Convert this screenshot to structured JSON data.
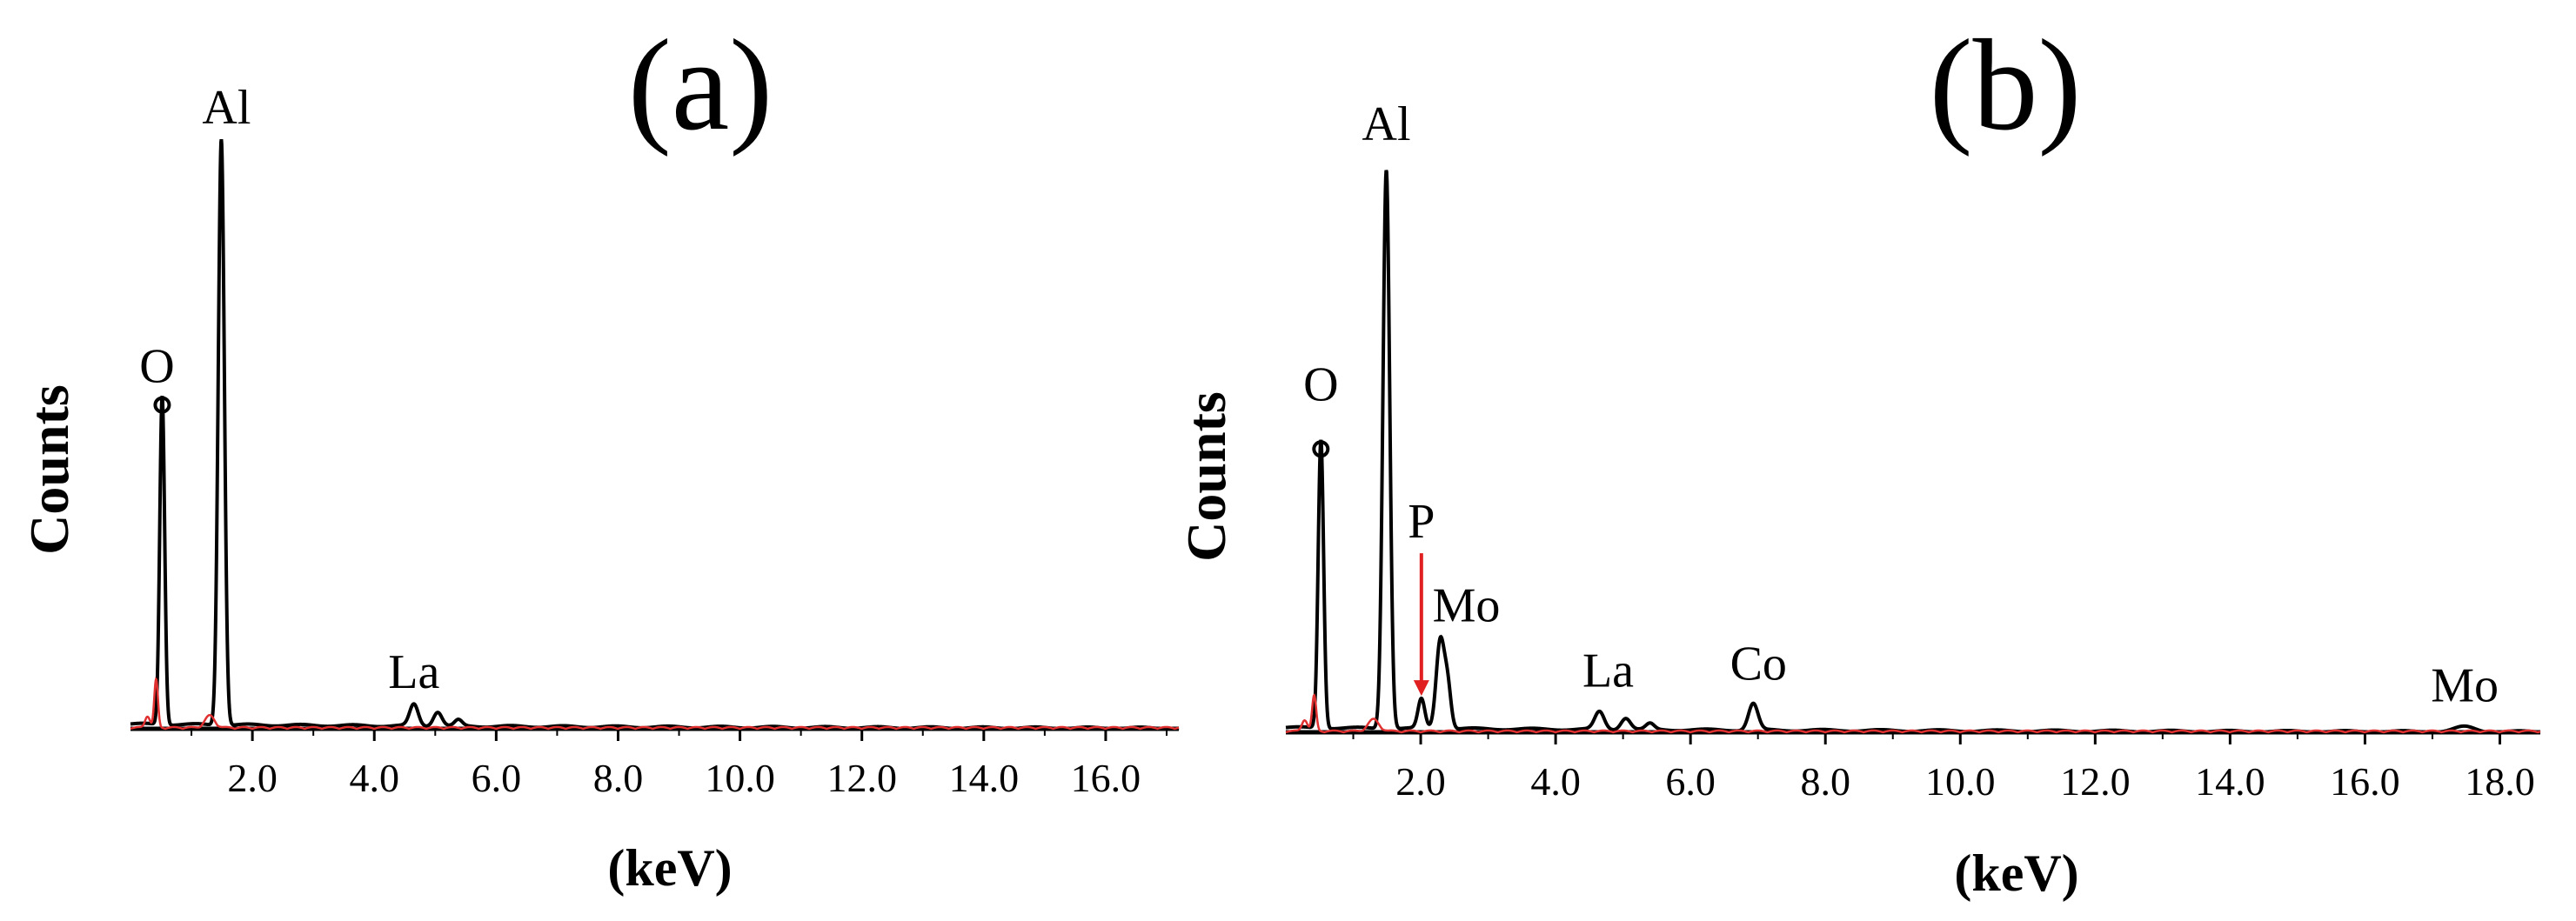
{
  "chart_data": [
    {
      "type": "line",
      "title": "(a)",
      "xlabel": "(keV)",
      "ylabel": "Counts",
      "xlim": [
        0.0,
        17.2
      ],
      "ylim": [
        0,
        100
      ],
      "xticks": [
        "2.0",
        "4.0",
        "6.0",
        "8.0",
        "10.0",
        "12.0",
        "14.0",
        "16.0"
      ],
      "grid": false,
      "series": [
        {
          "color": "#000000",
          "peaks": [
            {
              "x": 0.52,
              "y": 55,
              "w": 0.04
            },
            {
              "x": 1.49,
              "y": 98,
              "w": 0.05
            },
            {
              "x": 4.65,
              "y": 3.6,
              "w": 0.07
            },
            {
              "x": 5.04,
              "y": 2.4,
              "w": 0.07
            },
            {
              "x": 5.38,
              "y": 1.0,
              "w": 0.06
            }
          ]
        },
        {
          "color": "#e03030",
          "peaks": [
            {
              "x": 0.28,
              "y": 2.0,
              "w": 0.04
            },
            {
              "x": 0.42,
              "y": 8.0,
              "w": 0.03
            },
            {
              "x": 1.3,
              "y": 2.0,
              "w": 0.08
            }
          ]
        }
      ],
      "annotations": [
        {
          "text": "O",
          "x": 0.52,
          "y": 55
        },
        {
          "text": "Al",
          "x": 1.49,
          "y": 98
        },
        {
          "text": "La",
          "x": 4.65,
          "y": 3.6
        }
      ]
    },
    {
      "type": "line",
      "title": "(b)",
      "xlabel": "(keV)",
      "ylabel": "Counts",
      "xlim": [
        0.0,
        18.6
      ],
      "ylim": [
        0,
        100
      ],
      "xticks": [
        "2.0",
        "4.0",
        "6.0",
        "8.0",
        "10.0",
        "12.0",
        "14.0",
        "16.0",
        "18.0"
      ],
      "grid": false,
      "series": [
        {
          "color": "#000000",
          "peaks": [
            {
              "x": 0.52,
              "y": 49,
              "w": 0.04
            },
            {
              "x": 1.49,
              "y": 95,
              "w": 0.05
            },
            {
              "x": 2.01,
              "y": 5.0,
              "w": 0.05
            },
            {
              "x": 2.29,
              "y": 15,
              "w": 0.06
            },
            {
              "x": 2.4,
              "y": 7.0,
              "w": 0.05
            },
            {
              "x": 4.65,
              "y": 3.0,
              "w": 0.07
            },
            {
              "x": 5.04,
              "y": 2.0,
              "w": 0.07
            },
            {
              "x": 5.4,
              "y": 1.0,
              "w": 0.06
            },
            {
              "x": 6.93,
              "y": 4.5,
              "w": 0.07
            },
            {
              "x": 17.48,
              "y": 0.8,
              "w": 0.15
            }
          ]
        },
        {
          "color": "#e03030",
          "peaks": [
            {
              "x": 0.28,
              "y": 2.0,
              "w": 0.04
            },
            {
              "x": 0.42,
              "y": 6.0,
              "w": 0.03
            },
            {
              "x": 1.3,
              "y": 2.0,
              "w": 0.08
            }
          ]
        }
      ],
      "annotations": [
        {
          "text": "O",
          "x": 0.52,
          "y": 49
        },
        {
          "text": "Al",
          "x": 1.49,
          "y": 95
        },
        {
          "text": "P",
          "x": 2.01,
          "y": 5.0
        },
        {
          "text": "Mo",
          "x": 2.29,
          "y": 15
        },
        {
          "text": "La",
          "x": 4.65,
          "y": 3.0
        },
        {
          "text": "Co",
          "x": 6.93,
          "y": 4.5
        },
        {
          "text": "Mo",
          "x": 17.48,
          "y": 0.8
        }
      ]
    }
  ]
}
